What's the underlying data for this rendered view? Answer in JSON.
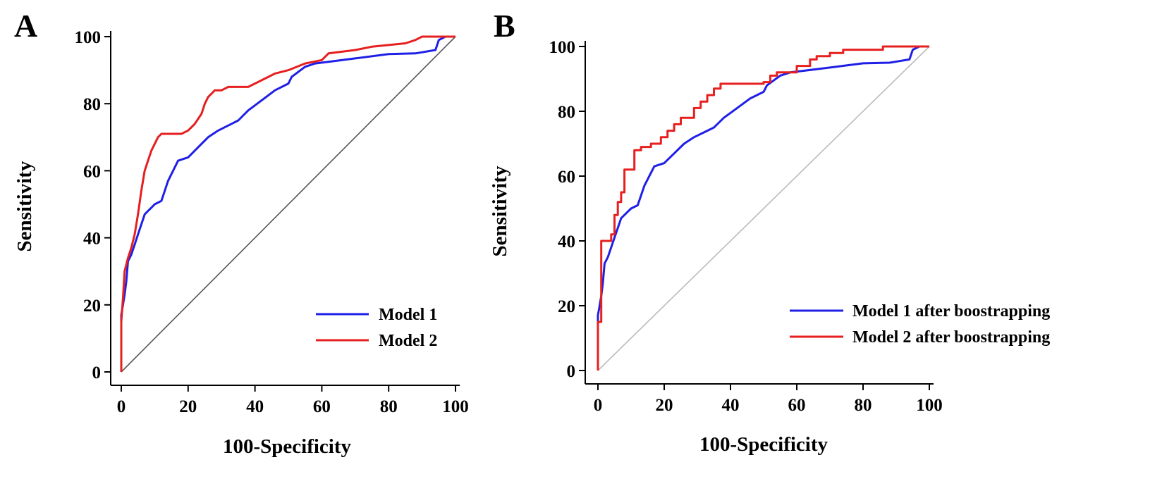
{
  "colors": {
    "model1": "#1f1fe6",
    "model2": "#e61f1f",
    "diagA": "#555555",
    "diagB": "#bbbbbb"
  },
  "chart_data": [
    {
      "type": "line",
      "panel": "A",
      "xlabel": "100-Specificity",
      "ylabel": "Sensitivity",
      "xlim": [
        0,
        100
      ],
      "ylim": [
        0,
        100
      ],
      "xticks": [
        0,
        20,
        40,
        60,
        80,
        100
      ],
      "yticks": [
        0,
        20,
        40,
        60,
        80,
        100
      ],
      "legend_position": "bottom-right",
      "reference_line": {
        "x": [
          0,
          100
        ],
        "y": [
          0,
          100
        ]
      },
      "series": [
        {
          "name": "Model 1",
          "color_key": "model1",
          "x": [
            0,
            0,
            0.5,
            1,
            1.5,
            2,
            3,
            4,
            5,
            6,
            7,
            8,
            9,
            10,
            12,
            14,
            17,
            20,
            23,
            26,
            29,
            33,
            35,
            38,
            42,
            46,
            50,
            51,
            55,
            58,
            62,
            70,
            80,
            88,
            94,
            95,
            97,
            100
          ],
          "y": [
            0,
            17,
            20,
            23,
            27,
            33,
            35,
            38,
            41,
            44,
            47,
            48,
            49,
            50,
            51,
            57,
            63,
            64,
            67,
            70,
            72,
            74,
            75,
            78,
            81,
            84,
            86,
            88,
            91,
            92,
            92.5,
            93.5,
            94.8,
            95,
            96,
            99,
            100,
            100
          ]
        },
        {
          "name": "Model 2",
          "color_key": "model2",
          "x": [
            0,
            0,
            0.5,
            1,
            2,
            3,
            4,
            5,
            6,
            7,
            8,
            9,
            10,
            11,
            12,
            15,
            18,
            20,
            22,
            24,
            25,
            26,
            27,
            28,
            30,
            32,
            35,
            38,
            42,
            46,
            50,
            55,
            60,
            62,
            70,
            75,
            80,
            85,
            88,
            90,
            95,
            100
          ],
          "y": [
            0,
            15,
            22,
            30,
            34,
            37,
            41,
            47,
            54,
            60,
            63,
            66,
            68,
            70,
            71,
            71,
            71,
            72,
            74,
            77,
            80,
            82,
            83,
            84,
            84,
            85,
            85,
            85,
            87,
            89,
            90,
            92,
            93,
            95,
            96,
            97,
            97.5,
            98,
            99,
            100,
            100,
            100
          ]
        }
      ]
    },
    {
      "type": "line",
      "panel": "B",
      "xlabel": "100-Specificity",
      "ylabel": "Sensitivity",
      "xlim": [
        0,
        100
      ],
      "ylim": [
        0,
        100
      ],
      "xticks": [
        0,
        20,
        40,
        60,
        80,
        100
      ],
      "yticks": [
        0,
        20,
        40,
        60,
        80,
        100
      ],
      "legend_position": "bottom-right",
      "reference_line": {
        "x": [
          0,
          100
        ],
        "y": [
          0,
          100
        ]
      },
      "series": [
        {
          "name": "Model 1 after boostrapping",
          "color_key": "model1",
          "x": [
            0,
            0,
            0.5,
            1,
            1.5,
            2,
            3,
            4,
            5,
            6,
            7,
            8,
            9,
            10,
            12,
            14,
            17,
            20,
            23,
            26,
            29,
            33,
            35,
            38,
            42,
            46,
            50,
            51,
            55,
            58,
            62,
            70,
            80,
            88,
            94,
            95,
            97,
            100
          ],
          "y": [
            0,
            17,
            20,
            23,
            27,
            33,
            35,
            38,
            41,
            44,
            47,
            48,
            49,
            50,
            51,
            57,
            63,
            64,
            67,
            70,
            72,
            74,
            75,
            78,
            81,
            84,
            86,
            88,
            91,
            92,
            92.5,
            93.5,
            94.8,
            95,
            96,
            99,
            100,
            100
          ]
        },
        {
          "name": "Model 2 after boostrapping",
          "color_key": "model2",
          "x": [
            0,
            0,
            1,
            1,
            4,
            4,
            5,
            5,
            6,
            6,
            7,
            7,
            8,
            8,
            11,
            11,
            13,
            13,
            16,
            16,
            19,
            19,
            21,
            21,
            23,
            23,
            25,
            25,
            29,
            29,
            31,
            31,
            33,
            33,
            35,
            35,
            37,
            37,
            50,
            50,
            52,
            52,
            54,
            54,
            60,
            60,
            64,
            64,
            66,
            66,
            70,
            70,
            74,
            74,
            86,
            86,
            90,
            100
          ],
          "y": [
            0,
            15,
            15,
            40,
            40,
            42,
            42,
            48,
            48,
            52,
            52,
            55,
            55,
            62,
            62,
            68,
            68,
            69,
            69,
            70,
            70,
            72,
            72,
            74,
            74,
            76,
            76,
            78,
            78,
            81,
            81,
            83,
            83,
            85,
            85,
            87,
            87,
            88.5,
            88.5,
            89,
            89,
            91,
            91,
            92,
            92,
            94,
            94,
            96,
            96,
            97,
            97,
            98,
            98,
            99,
            99,
            100,
            100,
            100
          ]
        }
      ]
    }
  ]
}
